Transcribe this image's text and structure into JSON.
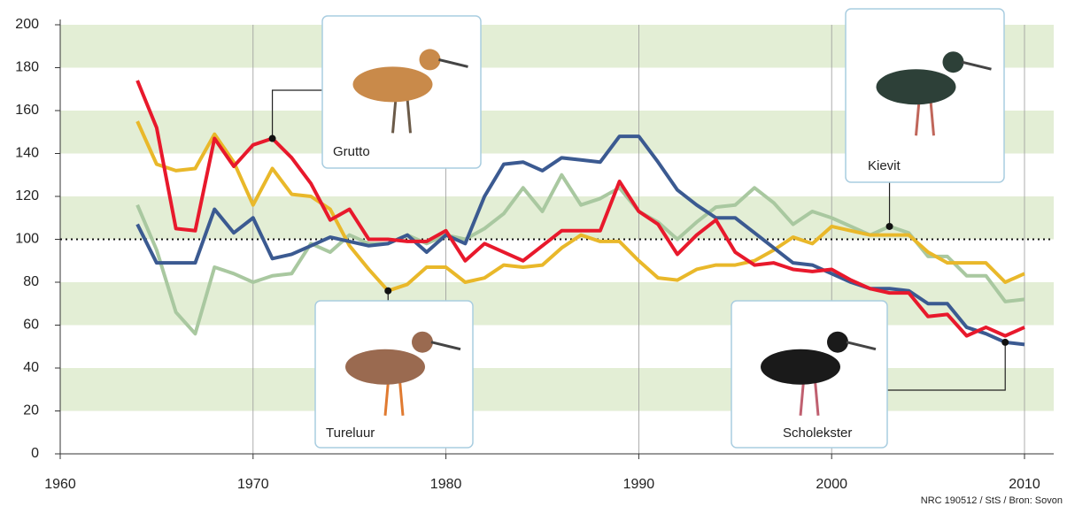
{
  "chart_data": {
    "type": "line",
    "x": [
      1964,
      1965,
      1966,
      1967,
      1968,
      1969,
      1970,
      1971,
      1972,
      1973,
      1974,
      1975,
      1976,
      1977,
      1978,
      1979,
      1980,
      1981,
      1982,
      1983,
      1984,
      1985,
      1986,
      1987,
      1988,
      1989,
      1990,
      1991,
      1992,
      1993,
      1994,
      1995,
      1996,
      1997,
      1998,
      1999,
      2000,
      2001,
      2002,
      2003,
      2004,
      2005,
      2006,
      2007,
      2008,
      2009,
      2010
    ],
    "series": [
      {
        "name": "Grutto",
        "color": "#e8192c",
        "values": [
          174,
          152,
          105,
          104,
          147,
          134,
          144,
          147,
          138,
          126,
          109,
          114,
          100,
          100,
          99,
          99,
          104,
          90,
          98,
          94,
          90,
          97,
          104,
          104,
          104,
          127,
          113,
          107,
          93,
          102,
          109,
          94,
          88,
          89,
          86,
          85,
          86,
          81,
          77,
          75,
          75,
          64,
          65,
          55,
          59,
          55,
          59
        ]
      },
      {
        "name": "Tureluur",
        "color": "#e9b82a",
        "values": [
          155,
          135,
          132,
          133,
          149,
          136,
          116,
          133,
          121,
          120,
          114,
          97,
          86,
          76,
          79,
          87,
          87,
          80,
          82,
          88,
          87,
          88,
          96,
          102,
          99,
          99,
          90,
          82,
          81,
          86,
          88,
          88,
          90,
          95,
          101,
          98,
          106,
          104,
          102,
          102,
          102,
          94,
          89,
          89,
          89,
          80,
          84
        ]
      },
      {
        "name": "Kievit",
        "color": "#a9c8a0",
        "values": [
          116,
          95,
          66,
          56,
          87,
          84,
          80,
          83,
          84,
          98,
          94,
          102,
          98,
          98,
          102,
          98,
          102,
          100,
          105,
          112,
          124,
          113,
          130,
          116,
          119,
          124,
          113,
          108,
          100,
          108,
          115,
          116,
          124,
          117,
          107,
          113,
          110,
          106,
          102,
          106,
          103,
          92,
          92,
          83,
          83,
          71,
          72
        ]
      },
      {
        "name": "Scholekster",
        "color": "#3b5a91",
        "values": [
          107,
          89,
          89,
          89,
          114,
          103,
          110,
          91,
          93,
          97,
          101,
          99,
          97,
          98,
          102,
          94,
          102,
          98,
          120,
          135,
          136,
          132,
          138,
          137,
          136,
          148,
          148,
          136,
          123,
          116,
          110,
          110,
          103,
          96,
          89,
          88,
          84,
          80,
          77,
          77,
          76,
          70,
          70,
          59,
          56,
          52,
          51
        ]
      }
    ],
    "xlim": [
      1960,
      2011.5
    ],
    "xticks": [
      1960,
      1970,
      1980,
      1990,
      2000,
      2010
    ],
    "ylim": [
      0,
      200
    ],
    "yticks": [
      0,
      20,
      40,
      60,
      80,
      100,
      120,
      140,
      160,
      180,
      200
    ],
    "reference_line": 100,
    "band_color": "#e3eed5",
    "grid": true,
    "source": "NRC 190512 / StS / Bron:  Sovon"
  }
}
